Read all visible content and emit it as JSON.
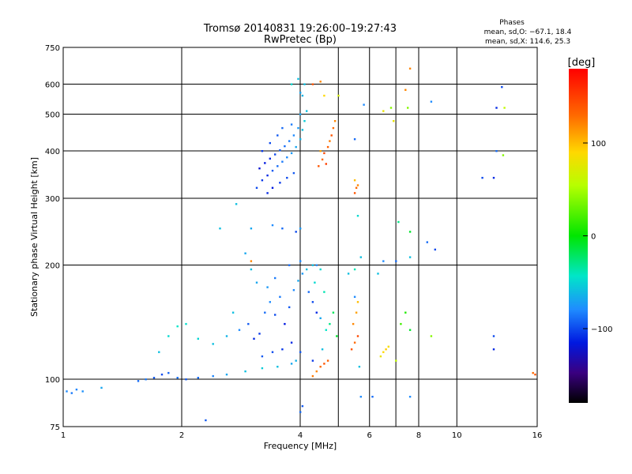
{
  "chart_data": {
    "type": "scatter",
    "title": "Tromsø 20140831 19:26:00–19:27:43",
    "subtitle": "RwPretec (Bp)",
    "xlabel": "Frequency [MHz]",
    "ylabel": "Stationary phase Virtual Height [km]",
    "x_scale": "log",
    "y_scale": "log",
    "xlim": [
      1,
      16
    ],
    "ylim": [
      75,
      750
    ],
    "x_ticks": [
      1,
      2,
      4,
      6,
      8,
      10,
      16
    ],
    "x_tick_labels": [
      "1",
      "2",
      "4",
      "6",
      "8",
      "10",
      "16"
    ],
    "y_ticks": [
      75,
      100,
      200,
      300,
      400,
      500,
      600,
      750
    ],
    "y_tick_labels": [
      "75",
      "100",
      "200",
      "300",
      "400",
      "500",
      "600",
      "750"
    ],
    "grid": true,
    "phase_box": {
      "heading": "Phases",
      "line_o": "mean, sd,O: −67.1, 18.4",
      "line_x": "mean, sd,X: 114.6, 25.3"
    },
    "colorbar": {
      "label": "[deg]",
      "range": [
        -180,
        180
      ],
      "ticks": [
        100,
        0,
        -100
      ],
      "tick_labels": [
        "100",
        "0",
        "−100"
      ]
    },
    "series": [
      {
        "points": [
          [
            1.02,
            93,
            -80
          ],
          [
            1.05,
            92,
            -85
          ],
          [
            1.08,
            94,
            -82
          ],
          [
            1.12,
            93,
            -78
          ],
          [
            1.25,
            95,
            -70
          ],
          [
            1.55,
            99,
            -90
          ],
          [
            1.62,
            100,
            -85
          ],
          [
            1.7,
            101,
            -95
          ],
          [
            1.78,
            103,
            -100
          ],
          [
            1.85,
            104,
            -92
          ],
          [
            1.95,
            101,
            -88
          ],
          [
            2.05,
            100,
            -95
          ],
          [
            2.2,
            101,
            -90
          ],
          [
            2.4,
            102,
            -82
          ],
          [
            2.6,
            103,
            -70
          ],
          [
            2.9,
            105,
            -60
          ],
          [
            3.2,
            107,
            -55
          ],
          [
            3.5,
            108,
            -60
          ],
          [
            3.8,
            110,
            -70
          ],
          [
            3.9,
            112,
            -65
          ],
          [
            1.75,
            118,
            -60
          ],
          [
            1.85,
            130,
            -50
          ],
          [
            1.95,
            138,
            -45
          ],
          [
            2.05,
            140,
            -48
          ],
          [
            2.2,
            128,
            -52
          ],
          [
            2.4,
            124,
            -60
          ],
          [
            2.6,
            130,
            -65
          ],
          [
            2.8,
            135,
            -80
          ],
          [
            2.95,
            140,
            -95
          ],
          [
            3.05,
            128,
            -110
          ],
          [
            3.15,
            132,
            -105
          ],
          [
            3.25,
            150,
            -90
          ],
          [
            3.35,
            160,
            -80
          ],
          [
            3.45,
            148,
            -100
          ],
          [
            3.55,
            165,
            -85
          ],
          [
            3.65,
            140,
            -115
          ],
          [
            3.75,
            155,
            -95
          ],
          [
            3.85,
            172,
            -80
          ],
          [
            3.95,
            182,
            -70
          ],
          [
            4.05,
            190,
            -75
          ],
          [
            4.2,
            170,
            -90
          ],
          [
            4.3,
            160,
            -100
          ],
          [
            4.4,
            150,
            -110
          ],
          [
            4.5,
            145,
            -70
          ],
          [
            4.55,
            120,
            -60
          ],
          [
            4.65,
            135,
            -45
          ],
          [
            4.75,
            140,
            -30
          ],
          [
            4.85,
            150,
            -20
          ],
          [
            4.95,
            130,
            -10
          ],
          [
            2.7,
            150,
            -60
          ],
          [
            3.0,
            195,
            -60
          ],
          [
            3.1,
            180,
            -70
          ],
          [
            3.3,
            175,
            -75
          ],
          [
            3.45,
            185,
            -85
          ],
          [
            3.75,
            200,
            -90
          ],
          [
            4.0,
            205,
            -80
          ],
          [
            4.15,
            195,
            -60
          ],
          [
            4.35,
            180,
            -50
          ],
          [
            4.6,
            170,
            -40
          ],
          [
            3.2,
            115,
            -95
          ],
          [
            3.4,
            118,
            -100
          ],
          [
            3.6,
            120,
            -105
          ],
          [
            3.8,
            125,
            -110
          ],
          [
            4.0,
            118,
            -95
          ],
          [
            4.3,
            112,
            -105
          ],
          [
            4.4,
            105,
            120
          ],
          [
            4.5,
            108,
            130
          ],
          [
            4.6,
            110,
            140
          ],
          [
            4.7,
            112,
            135
          ],
          [
            4.3,
            102,
            125
          ],
          [
            5.4,
            120,
            140
          ],
          [
            5.5,
            125,
            130
          ],
          [
            5.6,
            130,
            145
          ],
          [
            5.45,
            140,
            120
          ],
          [
            5.55,
            150,
            110
          ],
          [
            5.6,
            160,
            100
          ],
          [
            5.5,
            165,
            -80
          ],
          [
            5.3,
            190,
            -60
          ],
          [
            5.5,
            195,
            -40
          ],
          [
            5.65,
            108,
            -60
          ],
          [
            6.5,
            118,
            90
          ],
          [
            6.6,
            120,
            95
          ],
          [
            6.7,
            122,
            85
          ],
          [
            6.4,
            115,
            80
          ],
          [
            7.0,
            112,
            60
          ],
          [
            7.2,
            140,
            20
          ],
          [
            7.4,
            150,
            10
          ],
          [
            7.6,
            135,
            -10
          ],
          [
            6.3,
            190,
            -60
          ],
          [
            3.1,
            320,
            -100
          ],
          [
            3.2,
            335,
            -105
          ],
          [
            3.3,
            345,
            -110
          ],
          [
            3.4,
            355,
            -95
          ],
          [
            3.5,
            365,
            -90
          ],
          [
            3.6,
            375,
            -85
          ],
          [
            3.7,
            385,
            -80
          ],
          [
            3.8,
            395,
            -75
          ],
          [
            3.9,
            410,
            -70
          ],
          [
            4.0,
            430,
            -65
          ],
          [
            4.05,
            455,
            -60
          ],
          [
            4.1,
            480,
            -55
          ],
          [
            4.15,
            510,
            -60
          ],
          [
            3.15,
            360,
            -120
          ],
          [
            3.25,
            372,
            -115
          ],
          [
            3.35,
            382,
            -110
          ],
          [
            3.45,
            392,
            -100
          ],
          [
            3.55,
            402,
            -95
          ],
          [
            3.65,
            412,
            -90
          ],
          [
            3.75,
            425,
            -85
          ],
          [
            3.85,
            440,
            -80
          ],
          [
            3.95,
            460,
            -75
          ],
          [
            4.0,
            500,
            -70
          ],
          [
            4.05,
            560,
            -65
          ],
          [
            4.1,
            600,
            -60
          ],
          [
            3.2,
            400,
            -105
          ],
          [
            3.35,
            420,
            -100
          ],
          [
            3.5,
            440,
            -95
          ],
          [
            3.6,
            460,
            -90
          ],
          [
            3.8,
            470,
            -85
          ],
          [
            3.3,
            310,
            -110
          ],
          [
            3.4,
            320,
            -115
          ],
          [
            3.55,
            330,
            -105
          ],
          [
            3.7,
            340,
            -100
          ],
          [
            3.85,
            350,
            -95
          ],
          [
            4.45,
            365,
            140
          ],
          [
            4.55,
            380,
            130
          ],
          [
            4.6,
            395,
            145
          ],
          [
            4.7,
            410,
            135
          ],
          [
            4.75,
            425,
            125
          ],
          [
            4.8,
            440,
            140
          ],
          [
            4.85,
            460,
            130
          ],
          [
            4.9,
            480,
            120
          ],
          [
            4.5,
            400,
            110
          ],
          [
            4.65,
            370,
            150
          ],
          [
            5.5,
            310,
            140
          ],
          [
            5.55,
            320,
            130
          ],
          [
            5.6,
            325,
            120
          ],
          [
            5.5,
            335,
            100
          ],
          [
            4.3,
            600,
            140
          ],
          [
            4.5,
            610,
            120
          ],
          [
            3.95,
            620,
            -60
          ],
          [
            3.8,
            600,
            -50
          ],
          [
            4.0,
            570,
            -70
          ],
          [
            4.6,
            560,
            90
          ],
          [
            5.0,
            560,
            70
          ],
          [
            5.8,
            530,
            -80
          ],
          [
            7.4,
            580,
            120
          ],
          [
            7.5,
            520,
            40
          ],
          [
            8.6,
            540,
            -80
          ],
          [
            12.6,
            520,
            -110
          ],
          [
            13.2,
            520,
            60
          ],
          [
            13.0,
            590,
            -100
          ],
          [
            7.6,
            660,
            120
          ],
          [
            6.5,
            510,
            80
          ],
          [
            6.8,
            520,
            40
          ],
          [
            6.9,
            480,
            80
          ],
          [
            5.5,
            430,
            -90
          ],
          [
            8.4,
            230,
            -90
          ],
          [
            8.8,
            220,
            -100
          ],
          [
            6.5,
            205,
            -80
          ],
          [
            7.0,
            205,
            -90
          ],
          [
            7.6,
            210,
            -60
          ],
          [
            5.7,
            210,
            -60
          ],
          [
            5.6,
            270,
            -50
          ],
          [
            7.1,
            260,
            -30
          ],
          [
            7.6,
            245,
            -10
          ],
          [
            12.4,
            340,
            -110
          ],
          [
            11.6,
            340,
            -100
          ],
          [
            12.6,
            400,
            -90
          ],
          [
            13.1,
            390,
            40
          ],
          [
            15.6,
            104,
            130
          ],
          [
            15.8,
            103,
            140
          ],
          [
            12.4,
            130,
            -100
          ],
          [
            12.4,
            120,
            -110
          ],
          [
            8.6,
            130,
            40
          ],
          [
            6.1,
            90,
            -90
          ],
          [
            7.6,
            90,
            -80
          ],
          [
            2.3,
            78,
            -95
          ],
          [
            4.0,
            82,
            -90
          ],
          [
            4.05,
            85,
            -95
          ],
          [
            5.7,
            90,
            -80
          ],
          [
            2.5,
            250,
            -60
          ],
          [
            3.0,
            250,
            -70
          ],
          [
            3.4,
            255,
            -80
          ],
          [
            3.6,
            250,
            -90
          ],
          [
            3.9,
            245,
            -100
          ],
          [
            4.0,
            250,
            -75
          ],
          [
            4.3,
            200,
            -60
          ],
          [
            4.5,
            195,
            -50
          ],
          [
            2.75,
            290,
            -60
          ],
          [
            3.0,
            205,
            120
          ],
          [
            2.9,
            215,
            -70
          ],
          [
            4.4,
            200,
            -80
          ]
        ]
      }
    ]
  }
}
